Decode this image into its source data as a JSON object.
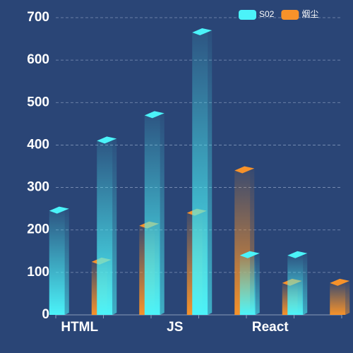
{
  "chart_data": {
    "type": "bar",
    "categories": [
      "HTML",
      null,
      "JS",
      null,
      "React",
      null
    ],
    "series": [
      {
        "name": "S02",
        "color": "#4bf3f9",
        "values": [
          245,
          410,
          470,
          665,
          140,
          140
        ]
      },
      {
        "name": "烟尘",
        "color": "#f7922a",
        "values": [
          125,
          210,
          240,
          340,
          75,
          75
        ]
      }
    ],
    "ylim": [
      0,
      700
    ],
    "yticks": [
      0,
      100,
      200,
      300,
      400,
      500,
      600,
      700
    ],
    "grid": true,
    "legend": "top-right"
  }
}
